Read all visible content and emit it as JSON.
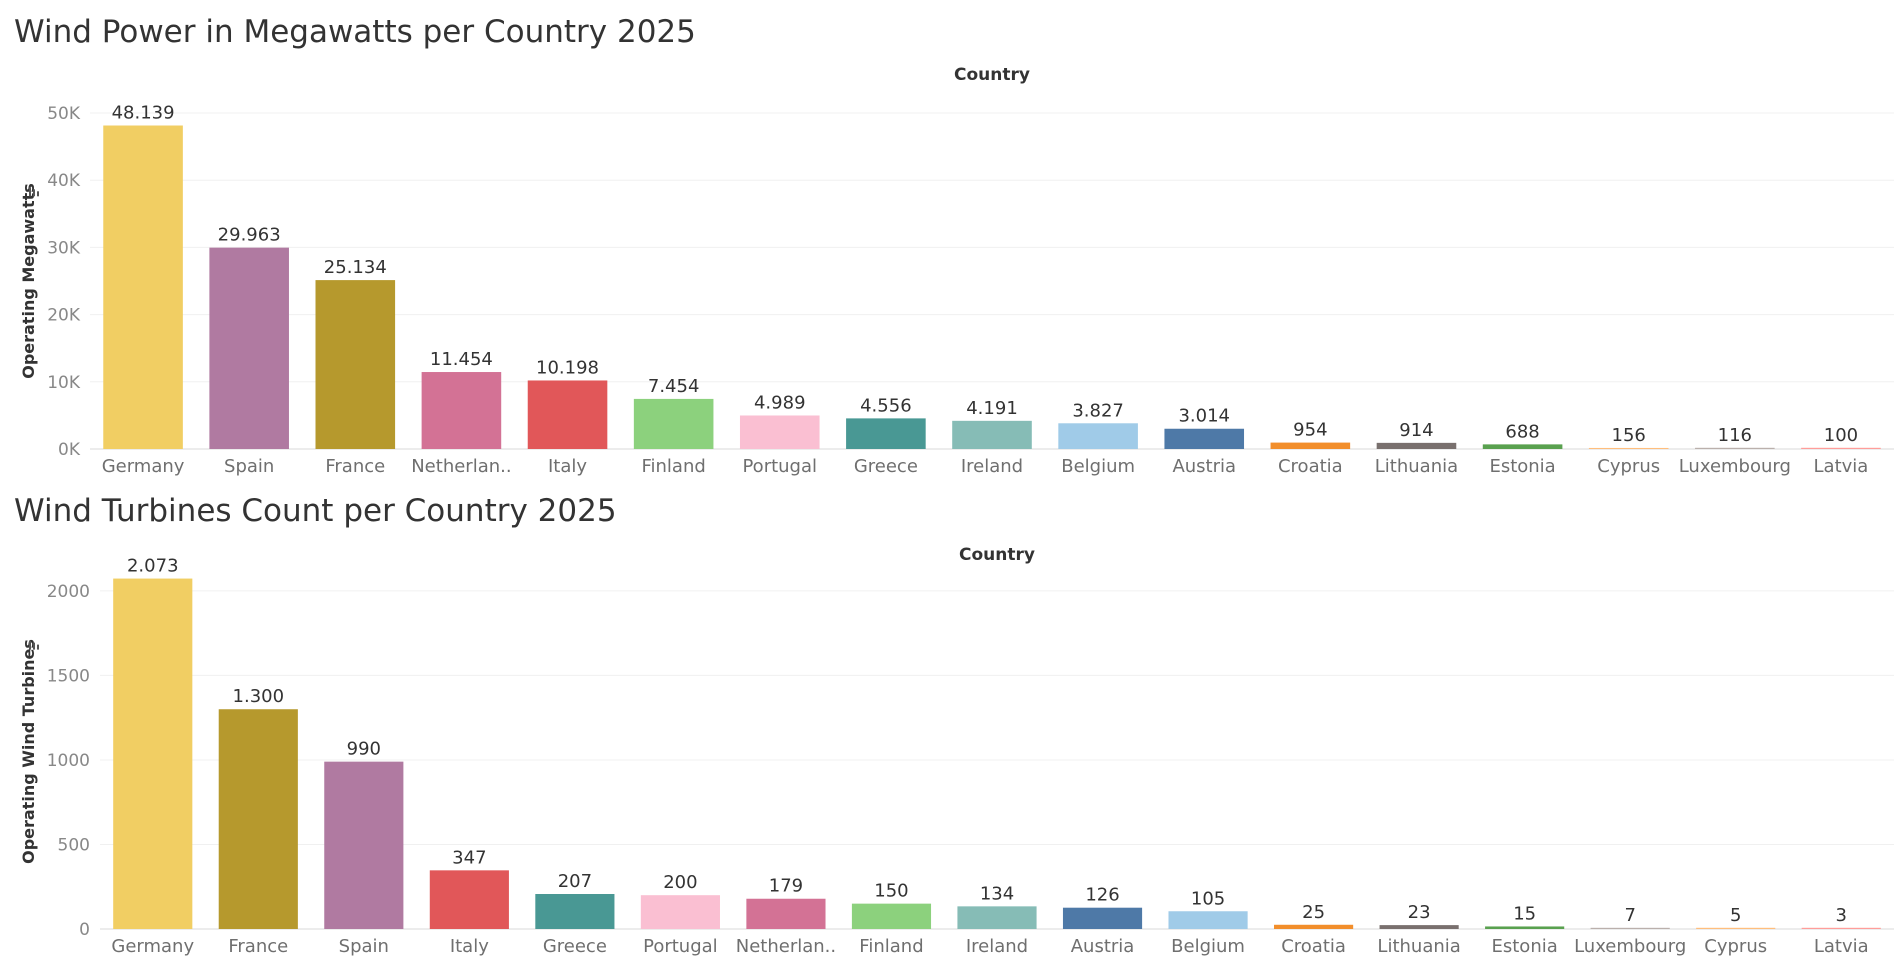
{
  "chart_data": [
    {
      "type": "bar",
      "title": "Wind Power in Megawatts per Country 2025",
      "column_header": "Country",
      "ylabel": "Operating Megawatts",
      "ylabel_icon": "sort-descending-icon",
      "ylim": [
        0,
        50000
      ],
      "yticks": [
        0,
        10000,
        20000,
        30000,
        40000,
        50000
      ],
      "ytick_labels": [
        "0K",
        "10K",
        "20K",
        "30K",
        "40K",
        "50K"
      ],
      "grid": true,
      "categories": [
        "Germany",
        "Spain",
        "France",
        "Netherlan..",
        "Italy",
        "Finland",
        "Portugal",
        "Greece",
        "Ireland",
        "Belgium",
        "Austria",
        "Croatia",
        "Lithuania",
        "Estonia",
        "Cyprus",
        "Luxembourg",
        "Latvia"
      ],
      "values": [
        48139,
        29963,
        25134,
        11454,
        10198,
        7454,
        4989,
        4556,
        4191,
        3827,
        3014,
        954,
        914,
        688,
        156,
        116,
        100
      ],
      "data_labels": [
        "48.139",
        "29.963",
        "25.134",
        "11.454",
        "10.198",
        "7.454",
        "4.989",
        "4.556",
        "4.191",
        "3.827",
        "3.014",
        "954",
        "914",
        "688",
        "156",
        "116",
        "100"
      ],
      "colors": [
        "#F1CE63",
        "#B07AA1",
        "#B6992D",
        "#D37295",
        "#E15759",
        "#8CD17D",
        "#FABFD2",
        "#499894",
        "#86BCB6",
        "#A0CBE8",
        "#4E79A7",
        "#F28E2B",
        "#79706E",
        "#59A14F",
        "#FFBE7D",
        "#BAB0AC",
        "#FF9D9A"
      ]
    },
    {
      "type": "bar",
      "title": "Wind Turbines Count per Country 2025",
      "column_header": "Country",
      "ylabel": "Operating Wind Turbines",
      "ylabel_icon": "sort-descending-icon",
      "ylim": [
        0,
        2100
      ],
      "yticks": [
        0,
        500,
        1000,
        1500,
        2000
      ],
      "ytick_labels": [
        "0",
        "500",
        "1000",
        "1500",
        "2000"
      ],
      "grid": true,
      "categories": [
        "Germany",
        "France",
        "Spain",
        "Italy",
        "Greece",
        "Portugal",
        "Netherlan..",
        "Finland",
        "Ireland",
        "Austria",
        "Belgium",
        "Croatia",
        "Lithuania",
        "Estonia",
        "Luxembourg",
        "Cyprus",
        "Latvia"
      ],
      "values": [
        2073,
        1300,
        990,
        347,
        207,
        200,
        179,
        150,
        134,
        126,
        105,
        25,
        23,
        15,
        7,
        5,
        3
      ],
      "data_labels": [
        "2.073",
        "1.300",
        "990",
        "347",
        "207",
        "200",
        "179",
        "150",
        "134",
        "126",
        "105",
        "25",
        "23",
        "15",
        "7",
        "5",
        "3"
      ],
      "colors": [
        "#F1CE63",
        "#B6992D",
        "#B07AA1",
        "#E15759",
        "#499894",
        "#FABFD2",
        "#D37295",
        "#8CD17D",
        "#86BCB6",
        "#4E79A7",
        "#A0CBE8",
        "#F28E2B",
        "#79706E",
        "#59A14F",
        "#BAB0AC",
        "#FFBE7D",
        "#FF9D9A"
      ]
    }
  ]
}
